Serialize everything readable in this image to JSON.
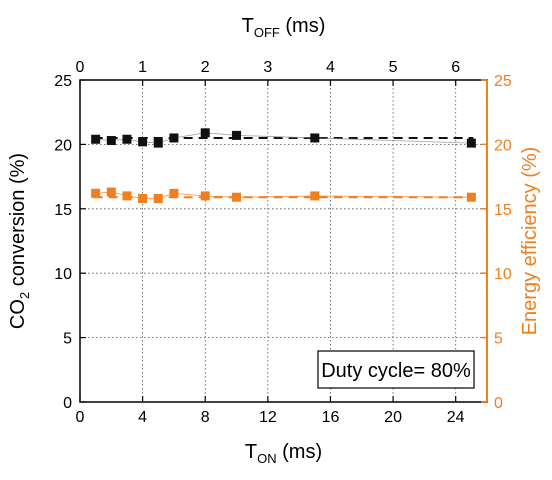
{
  "colors": {
    "left_axis": "#000000",
    "right_axis": "#f07f1e",
    "series_black": "#111111",
    "series_orange": "#f07f1e",
    "grid": "#555555"
  },
  "annotation": "Duty cycle= 80%",
  "chart_data": {
    "type": "scatter",
    "x_bottom": {
      "label_main": "T",
      "label_sub": "ON",
      "label_unit": " (ms)",
      "range": [
        0,
        26
      ],
      "ticks": [
        0,
        4,
        8,
        12,
        16,
        20,
        24
      ],
      "tick_labels": [
        "0",
        "4",
        "8",
        "12",
        "16",
        "20",
        "24"
      ]
    },
    "x_top": {
      "label_main": "T",
      "label_sub": "OFF",
      "label_unit": " (ms)",
      "range": [
        0,
        6.5
      ],
      "ticks": [
        0,
        1,
        2,
        3,
        4,
        5,
        6
      ],
      "tick_labels": [
        "0",
        "1",
        "2",
        "3",
        "4",
        "5",
        "6"
      ]
    },
    "y_left": {
      "label_pre": "CO",
      "label_sub": "2",
      "label_post": " conversion (%)",
      "range": [
        0,
        25
      ],
      "ticks": [
        0,
        5,
        10,
        15,
        20,
        25
      ],
      "tick_labels": [
        "0",
        "5",
        "10",
        "15",
        "20",
        "25"
      ]
    },
    "y_right": {
      "label": "Energy efficiency (%)",
      "range": [
        0,
        25
      ],
      "ticks": [
        0,
        5,
        10,
        15,
        20,
        25
      ],
      "tick_labels": [
        "0",
        "5",
        "10",
        "15",
        "20",
        "25"
      ]
    },
    "grid": true,
    "series": [
      {
        "axis": "left",
        "color": "#111111",
        "marker": "square",
        "x": [
          1,
          2,
          3,
          4,
          5,
          6,
          8,
          10,
          15,
          25
        ],
        "y": [
          20.4,
          20.3,
          20.4,
          20.2,
          20.1,
          20.5,
          20.9,
          20.7,
          20.5,
          20.1
        ],
        "fit": 20.5
      },
      {
        "axis": "right",
        "color": "#f07f1e",
        "marker": "square",
        "x": [
          1,
          2,
          3,
          4,
          5,
          6,
          8,
          10,
          15,
          25
        ],
        "y": [
          16.2,
          16.3,
          16.0,
          15.8,
          15.8,
          16.2,
          16.0,
          15.9,
          16.0,
          15.9
        ],
        "fit": 15.9
      }
    ]
  }
}
